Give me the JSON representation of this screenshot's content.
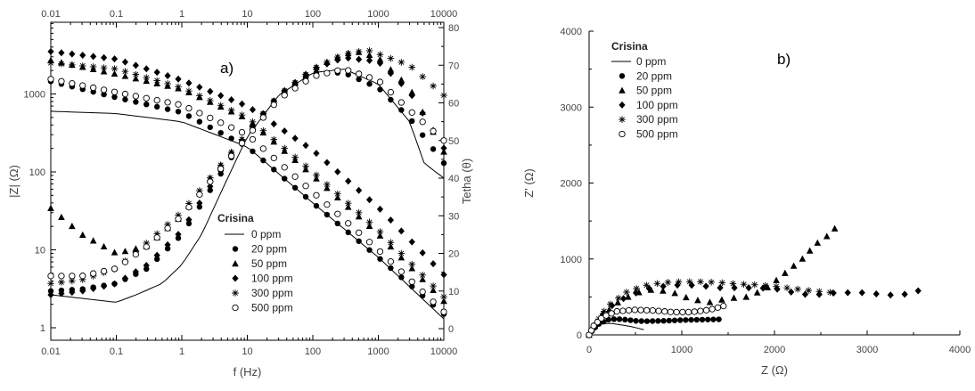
{
  "chart_data": [
    {
      "type": "scatter",
      "panel": "a)",
      "xscale": "log",
      "xlabel": "f (Hz)",
      "ylabel": "|Z| (Ω)",
      "y2label": "Tetha (θ)",
      "xlim": [
        0.01,
        10000
      ],
      "ylim": [
        1,
        10000
      ],
      "y2lim": [
        0,
        80
      ],
      "yscale": "log",
      "x_ticks": [
        "0.01",
        "0.1",
        "1",
        "10",
        "100",
        "1000",
        "10000"
      ],
      "x_top_ticks": [
        "0.01",
        "0.1",
        "1",
        "10",
        "100",
        "1000",
        "10000"
      ],
      "y_ticks": [
        "1",
        "10",
        "100",
        "1000"
      ],
      "y2_ticks": [
        "0",
        "10",
        "20",
        "30",
        "40",
        "50",
        "60",
        "70",
        "80"
      ],
      "legend": {
        "title": "Crisina",
        "placement": "lower-center",
        "entries": [
          "0 ppm",
          "20 ppm",
          "50 ppm",
          "100 ppm",
          "300 ppm",
          "500 ppm"
        ]
      },
      "series": [
        {
          "name": "0 ppm",
          "marker": "line",
          "modulus": {
            "x": [
              0.01,
              0.1,
              1,
              10,
              100,
              1000,
              10000
            ],
            "y": [
              600,
              560,
              440,
              210,
              40,
              8,
              1.3
            ]
          },
          "phase": {
            "x": [
              0.01,
              0.1,
              0.2,
              0.5,
              1,
              2,
              5,
              10,
              30,
              100,
              300,
              1000,
              3000,
              5000,
              10000
            ],
            "y": [
              9,
              7,
              9,
              12,
              17,
              25,
              40,
              51,
              62,
              68,
              69,
              65,
              55,
              44,
              40
            ]
          }
        },
        {
          "name": "20 ppm",
          "marker": "circle-filled",
          "modulus": {
            "x": [
              0.01,
              0.1,
              1,
              10,
              100,
              1000,
              10000
            ],
            "y": [
              1450,
              900,
              580,
              210,
              40,
              8,
              1.5
            ]
          },
          "phase": {
            "x": [
              0.01,
              0.03,
              0.1,
              0.3,
              1,
              3,
              10,
              30,
              100,
              300,
              1000,
              3000,
              10000
            ],
            "y": [
              10,
              10.5,
              12,
              16,
              25,
              38,
              52,
              62,
              68,
              68,
              64,
              56,
              44
            ]
          }
        },
        {
          "name": "50 ppm",
          "marker": "triangle-filled",
          "modulus": {
            "x": [
              0.01,
              0.1,
              1,
              10,
              100,
              1000,
              10000
            ],
            "y": [
              2700,
              1800,
              1150,
              480,
              90,
              16,
              2.2
            ]
          },
          "phase": {
            "x": [
              0.01,
              0.03,
              0.1,
              0.3,
              1,
              3,
              10,
              30,
              100,
              300,
              500,
              1000,
              3000,
              10000
            ],
            "y": [
              32,
              25,
              20,
              22,
              30,
              41,
              52,
              62,
              69,
              73,
              73.5,
              72,
              64,
              47
            ]
          }
        },
        {
          "name": "100 ppm",
          "marker": "diamond-filled",
          "modulus": {
            "x": [
              0.01,
              0.1,
              1,
              10,
              100,
              1000,
              10000
            ],
            "y": [
              3500,
              2800,
              1500,
              700,
              190,
              35,
              4.8
            ]
          },
          "phase": {
            "x": [
              0.01,
              0.03,
              0.1,
              0.3,
              1,
              3,
              10,
              30,
              100,
              300,
              1000,
              3000,
              10000
            ],
            "y": [
              9,
              10,
              12,
              17,
              26,
              39,
              52,
              62,
              69,
              72,
              71,
              63,
              48
            ]
          }
        },
        {
          "name": "300 ppm",
          "marker": "asterisk",
          "modulus": {
            "x": [
              0.01,
              0.1,
              1,
              10,
              100,
              1000,
              10000
            ],
            "y": [
              2500,
              2100,
              1200,
              500,
              100,
              18,
              2.5
            ]
          },
          "phase": {
            "x": [
              0.01,
              0.03,
              0.1,
              0.3,
              1,
              3,
              10,
              30,
              100,
              300,
              700,
              1000,
              3000,
              10000
            ],
            "y": [
              12,
              13,
              16,
              23,
              31,
              41,
              52,
              62,
              69,
              73,
              74,
              73,
              70,
              62
            ]
          }
        },
        {
          "name": "500 ppm",
          "marker": "circle-open",
          "modulus": {
            "x": [
              0.01,
              0.1,
              1,
              10,
              100,
              1000,
              10000
            ],
            "y": [
              1550,
              1050,
              720,
              300,
              55,
              10,
              1.6
            ]
          },
          "phase": {
            "x": [
              0.01,
              0.03,
              0.1,
              0.3,
              1,
              3,
              10,
              30,
              100,
              300,
              1000,
              3000,
              10000
            ],
            "y": [
              14,
              14,
              16,
              22,
              30,
              40,
              51,
              61,
              67,
              69,
              66,
              58,
              50
            ]
          }
        }
      ]
    },
    {
      "type": "scatter",
      "panel": "b)",
      "xlabel": "Z (Ω)",
      "ylabel": "Z' (Ω)",
      "xlim": [
        0,
        4000
      ],
      "ylim": [
        0,
        4000
      ],
      "x_ticks": [
        "0",
        "1000",
        "2000",
        "3000",
        "4000"
      ],
      "y_ticks": [
        "0",
        "1000",
        "2000",
        "3000",
        "4000"
      ],
      "legend": {
        "title": "Crisina",
        "placement": "top-left",
        "entries": [
          "0 ppm",
          "20 ppm",
          "50 ppm",
          "100 ppm",
          "300 ppm",
          "500 ppm"
        ]
      },
      "series": [
        {
          "name": "0 ppm",
          "marker": "line",
          "x": [
            0,
            60,
            150,
            250,
            350,
            450,
            520,
            570,
            590
          ],
          "y": [
            0,
            100,
            150,
            150,
            130,
            110,
            90,
            75,
            70
          ]
        },
        {
          "name": "20 ppm",
          "marker": "circle-filled",
          "x": [
            0,
            50,
            100,
            200,
            300,
            400,
            500,
            600,
            800,
            1000,
            1200,
            1400
          ],
          "y": [
            0,
            80,
            140,
            200,
            210,
            200,
            185,
            180,
            185,
            195,
            200,
            205
          ]
        },
        {
          "name": "50 ppm",
          "marker": "triangle-filled",
          "x": [
            0,
            60,
            150,
            300,
            500,
            700,
            900,
            1100,
            1300,
            1500,
            1700,
            1900,
            2100,
            2300,
            2450,
            2550,
            2650
          ],
          "y": [
            0,
            120,
            260,
            420,
            550,
            600,
            560,
            470,
            430,
            480,
            500,
            600,
            800,
            1000,
            1200,
            1280,
            1400
          ]
        },
        {
          "name": "100 ppm",
          "marker": "diamond-filled",
          "x": [
            0,
            100,
            200,
            400,
            600,
            800,
            1000,
            1200,
            1400,
            1600,
            1800,
            2000,
            2200,
            2400,
            2600,
            2900,
            3100,
            3300,
            3500,
            3550
          ],
          "y": [
            0,
            200,
            350,
            500,
            600,
            640,
            660,
            650,
            620,
            620,
            620,
            610,
            560,
            520,
            550,
            560,
            540,
            520,
            550,
            580
          ]
        },
        {
          "name": "300 ppm",
          "marker": "asterisk",
          "x": [
            0,
            100,
            200,
            400,
            600,
            800,
            1000,
            1200,
            1400,
            1600,
            1800,
            2000,
            2200,
            2400,
            2600
          ],
          "y": [
            0,
            200,
            380,
            560,
            650,
            690,
            700,
            700,
            690,
            670,
            660,
            640,
            610,
            580,
            560
          ]
        },
        {
          "name": "500 ppm",
          "marker": "circle-open",
          "x": [
            0,
            50,
            150,
            300,
            500,
            700,
            900,
            1100,
            1300,
            1450
          ],
          "y": [
            0,
            120,
            240,
            310,
            330,
            320,
            300,
            300,
            330,
            380
          ]
        }
      ]
    }
  ]
}
